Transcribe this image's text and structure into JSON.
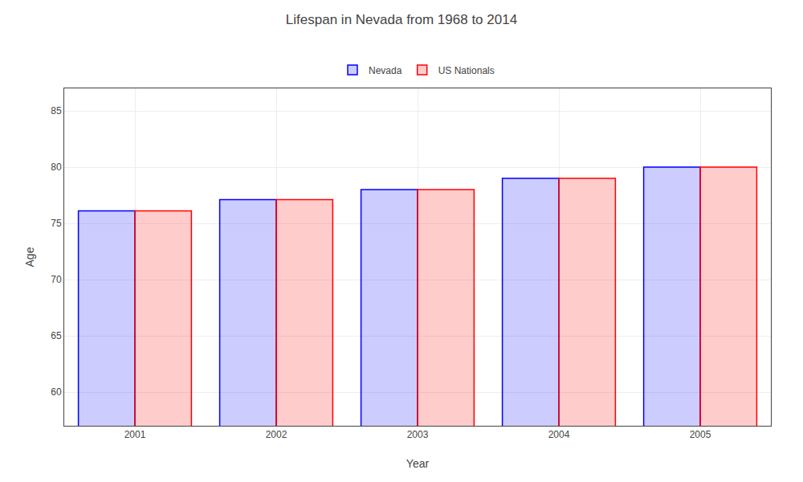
{
  "chart_data": {
    "type": "bar",
    "title": "Lifespan in Nevada from 1968 to 2014",
    "x_label": "Year",
    "y_label": "Age",
    "categories": [
      "2001",
      "2002",
      "2003",
      "2004",
      "2005"
    ],
    "series": [
      {
        "name": "Nevada",
        "color": "#0000ff",
        "values": [
          76.1,
          77.1,
          78.0,
          79.0,
          80.0
        ]
      },
      {
        "name": "US Nationals",
        "color": "#ff0000",
        "values": [
          76.1,
          77.1,
          78.0,
          79.0,
          80.0
        ]
      }
    ],
    "ylim": [
      57,
      87
    ],
    "yticks": [
      60,
      65,
      70,
      75,
      80,
      85
    ],
    "grid": true,
    "legend": "top"
  }
}
